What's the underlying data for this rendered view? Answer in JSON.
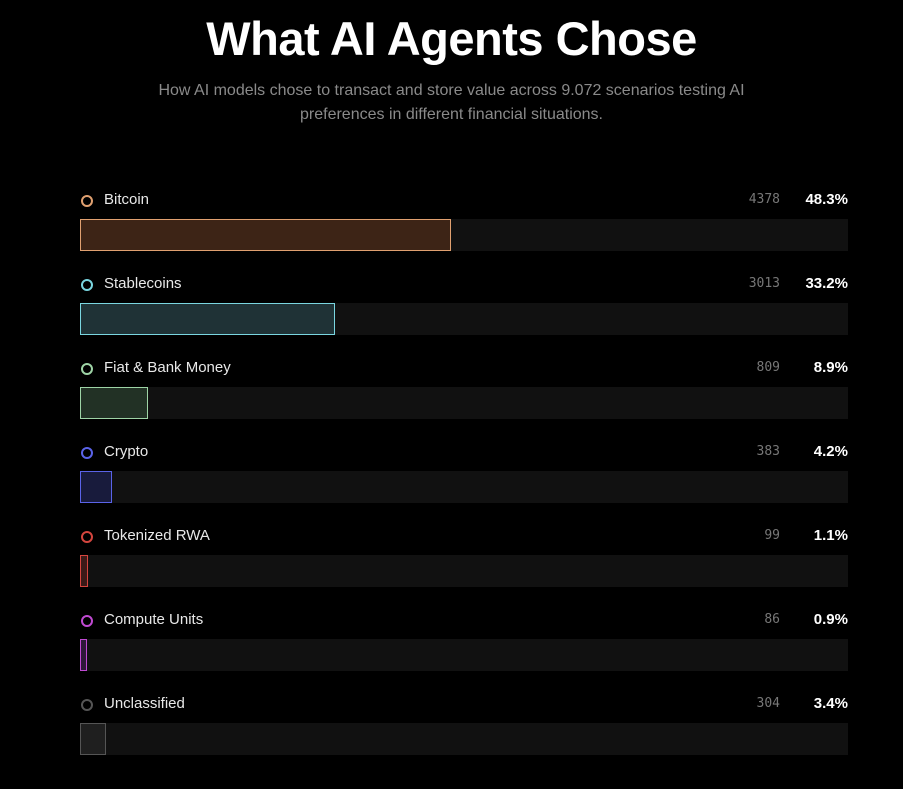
{
  "header": {
    "title": "What AI Agents Chose",
    "subtitle": "How AI models chose to transact and store value across 9.072 scenarios testing AI preferences in different financial situations."
  },
  "chart_data": {
    "type": "bar",
    "orientation": "horizontal",
    "categories": [
      "Bitcoin",
      "Stablecoins",
      "Fiat & Bank Money",
      "Crypto",
      "Tokenized RWA",
      "Compute Units",
      "Unclassified"
    ],
    "counts": [
      4378,
      3013,
      809,
      383,
      99,
      86,
      304
    ],
    "count_labels": [
      "4378",
      "3013",
      "809",
      "383",
      "99",
      "86",
      "304"
    ],
    "percent_labels": [
      "48.3%",
      "33.2%",
      "8.9%",
      "4.2%",
      "1.1%",
      "0.9%",
      "3.4%"
    ],
    "colors": [
      {
        "border": "#e0a070",
        "fill": "#3d2416"
      },
      {
        "border": "#7ad6e0",
        "fill": "#1f3236"
      },
      {
        "border": "#9ed4a6",
        "fill": "#223125"
      },
      {
        "border": "#5a63e8",
        "fill": "#181b3c"
      },
      {
        "border": "#d4453e",
        "fill": "#3a1a18"
      },
      {
        "border": "#c04ad2",
        "fill": "#2e1838"
      },
      {
        "border": "#555555",
        "fill": "#1f1f1f"
      }
    ],
    "max_count": 9072
  }
}
